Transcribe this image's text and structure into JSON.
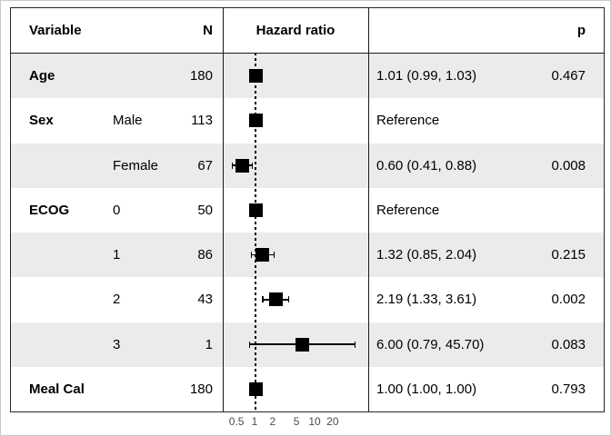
{
  "header": {
    "variable": "Variable",
    "n": "N",
    "hazard_ratio": "Hazard ratio",
    "p": "p"
  },
  "rows": [
    {
      "variable": "Age",
      "level": "",
      "n": "180",
      "estimate_label": "1.01 (0.99, 1.03)",
      "p": "0.467",
      "hr": 1.01,
      "lo": 0.99,
      "hi": 1.03,
      "shaded": true
    },
    {
      "variable": "Sex",
      "level": "Male",
      "n": "113",
      "estimate_label": "Reference",
      "p": "",
      "hr": 1.0,
      "lo": null,
      "hi": null,
      "shaded": false
    },
    {
      "variable": "",
      "level": "Female",
      "n": "67",
      "estimate_label": "0.60 (0.41, 0.88)",
      "p": "0.008",
      "hr": 0.6,
      "lo": 0.41,
      "hi": 0.88,
      "shaded": true
    },
    {
      "variable": "ECOG",
      "level": "0",
      "n": "50",
      "estimate_label": "Reference",
      "p": "",
      "hr": 1.0,
      "lo": null,
      "hi": null,
      "shaded": false
    },
    {
      "variable": "",
      "level": "1",
      "n": "86",
      "estimate_label": "1.32 (0.85, 2.04)",
      "p": "0.215",
      "hr": 1.32,
      "lo": 0.85,
      "hi": 2.04,
      "shaded": true
    },
    {
      "variable": "",
      "level": "2",
      "n": "43",
      "estimate_label": "2.19 (1.33, 3.61)",
      "p": "0.002",
      "hr": 2.19,
      "lo": 1.33,
      "hi": 3.61,
      "shaded": false
    },
    {
      "variable": "",
      "level": "3",
      "n": "1",
      "estimate_label": "6.00 (0.79, 45.70)",
      "p": "0.083",
      "hr": 6.0,
      "lo": 0.79,
      "hi": 45.7,
      "shaded": true
    },
    {
      "variable": "Meal Cal",
      "level": "",
      "n": "180",
      "estimate_label": "1.00 (1.00, 1.00)",
      "p": "0.793",
      "hr": 1.0,
      "lo": 1.0,
      "hi": 1.0,
      "shaded": false
    }
  ],
  "axis": {
    "tick_labels": [
      "0.5",
      "1",
      "2",
      "5",
      "10",
      "20"
    ],
    "ticks": [
      0.5,
      1,
      2,
      5,
      10,
      20
    ],
    "reference_value": 1,
    "scale": "log10"
  },
  "colors": {
    "row_shade": "#ebebeb",
    "line": "#1a1a1a",
    "marker": "#000000",
    "tick_text": "#4d4d4d"
  },
  "chart_data": {
    "type": "scatter",
    "subtype": "forest-plot",
    "xlabel": "Hazard ratio",
    "x_scale": "log",
    "x_ticks": [
      0.5,
      1,
      2,
      5,
      10,
      20
    ],
    "reference_line": 1,
    "legend": "none",
    "rows": [
      {
        "variable": "Age",
        "level": null,
        "n": 180,
        "hr": 1.01,
        "ci_low": 0.99,
        "ci_high": 1.03,
        "p": 0.467
      },
      {
        "variable": "Sex",
        "level": "Male",
        "n": 113,
        "hr": 1.0,
        "reference": true
      },
      {
        "variable": "Sex",
        "level": "Female",
        "n": 67,
        "hr": 0.6,
        "ci_low": 0.41,
        "ci_high": 0.88,
        "p": 0.008
      },
      {
        "variable": "ECOG",
        "level": "0",
        "n": 50,
        "hr": 1.0,
        "reference": true
      },
      {
        "variable": "ECOG",
        "level": "1",
        "n": 86,
        "hr": 1.32,
        "ci_low": 0.85,
        "ci_high": 2.04,
        "p": 0.215
      },
      {
        "variable": "ECOG",
        "level": "2",
        "n": 43,
        "hr": 2.19,
        "ci_low": 1.33,
        "ci_high": 3.61,
        "p": 0.002
      },
      {
        "variable": "ECOG",
        "level": "3",
        "n": 1,
        "hr": 6.0,
        "ci_low": 0.79,
        "ci_high": 45.7,
        "p": 0.083
      },
      {
        "variable": "Meal Cal",
        "level": null,
        "n": 180,
        "hr": 1.0,
        "ci_low": 1.0,
        "ci_high": 1.0,
        "p": 0.793
      }
    ]
  }
}
